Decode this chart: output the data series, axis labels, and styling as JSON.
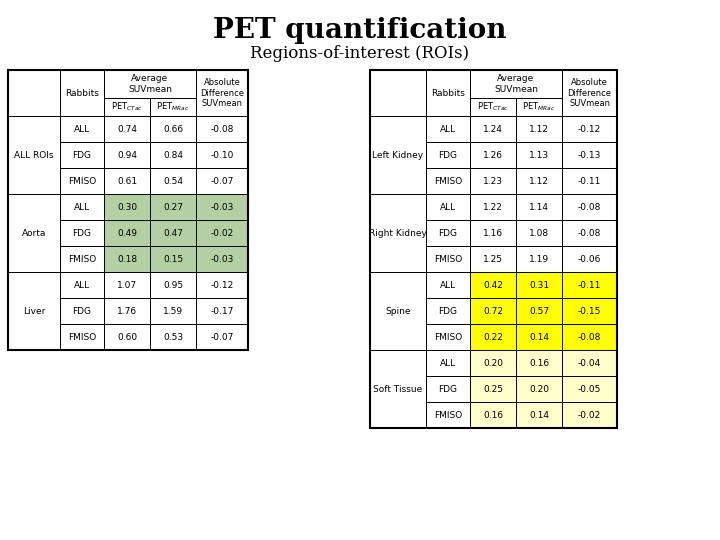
{
  "title": "PET quantification",
  "subtitle": "Regions-of-interest (ROIs)",
  "left_table": {
    "data": [
      [
        "ALL ROIs",
        "ALL",
        "0.74",
        "0.66",
        "-0.08"
      ],
      [
        "ALL ROIs",
        "FDG",
        "0.94",
        "0.84",
        "-0.10"
      ],
      [
        "ALL ROIs",
        "FMISO",
        "0.61",
        "0.54",
        "-0.07"
      ],
      [
        "Aorta",
        "ALL",
        "0.30",
        "0.27",
        "-0.03"
      ],
      [
        "Aorta",
        "FDG",
        "0.49",
        "0.47",
        "-0.02"
      ],
      [
        "Aorta",
        "FMISO",
        "0.18",
        "0.15",
        "-0.03"
      ],
      [
        "Liver",
        "ALL",
        "1.07",
        "0.95",
        "-0.12"
      ],
      [
        "Liver",
        "FDG",
        "1.76",
        "1.59",
        "-0.17"
      ],
      [
        "Liver",
        "FMISO",
        "0.60",
        "0.53",
        "-0.07"
      ]
    ],
    "groups": [
      [
        "ALL ROIs",
        0,
        3
      ],
      [
        "Aorta",
        3,
        3
      ],
      [
        "Liver",
        6,
        3
      ]
    ],
    "highlight": {
      "Aorta": "#b5cfa5"
    }
  },
  "right_table": {
    "data": [
      [
        "Left Kidney",
        "ALL",
        "1.24",
        "1.12",
        "-0.12"
      ],
      [
        "Left Kidney",
        "FDG",
        "1.26",
        "1.13",
        "-0.13"
      ],
      [
        "Left Kidney",
        "FMISO",
        "1.23",
        "1.12",
        "-0.11"
      ],
      [
        "Right Kidney",
        "ALL",
        "1.22",
        "1.14",
        "-0.08"
      ],
      [
        "Right Kidney",
        "FDG",
        "1.16",
        "1.08",
        "-0.08"
      ],
      [
        "Right Kidney",
        "FMISO",
        "1.25",
        "1.19",
        "-0.06"
      ],
      [
        "Spine",
        "ALL",
        "0.42",
        "0.31",
        "-0.11"
      ],
      [
        "Spine",
        "FDG",
        "0.72",
        "0.57",
        "-0.15"
      ],
      [
        "Spine",
        "FMISO",
        "0.22",
        "0.14",
        "-0.08"
      ],
      [
        "Soft Tissue",
        "ALL",
        "0.20",
        "0.16",
        "-0.04"
      ],
      [
        "Soft Tissue",
        "FDG",
        "0.25",
        "0.20",
        "-0.05"
      ],
      [
        "Soft Tissue",
        "FMISO",
        "0.16",
        "0.14",
        "-0.02"
      ]
    ],
    "groups": [
      [
        "Left Kidney",
        0,
        3
      ],
      [
        "Right Kidney",
        3,
        3
      ],
      [
        "Spine",
        6,
        3
      ],
      [
        "Soft Tissue",
        9,
        3
      ]
    ],
    "highlight": {
      "Spine": "#ffff00",
      "Soft Tissue": "#ffffcc"
    }
  },
  "bg_color": "#ffffff",
  "title_fontsize": 20,
  "subtitle_fontsize": 12,
  "cell_fontsize": 6.5
}
